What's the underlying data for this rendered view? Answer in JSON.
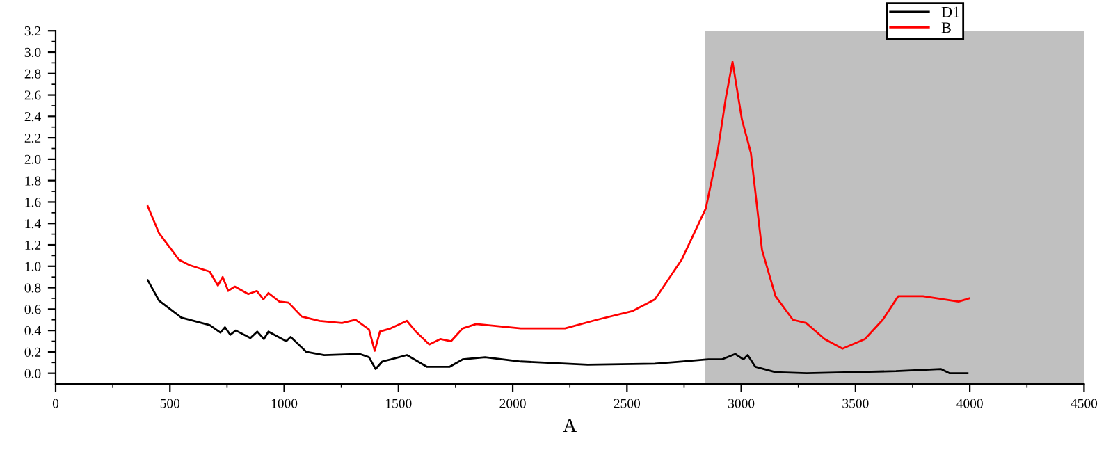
{
  "chart_data": {
    "type": "line",
    "xlabel": "A",
    "xlim": [
      0,
      4500
    ],
    "xticks": [
      0,
      500,
      1000,
      1500,
      2000,
      2500,
      3000,
      3500,
      4000,
      4500
    ],
    "ylim": [
      -0.1,
      3.2
    ],
    "yticks": [
      {
        "value": 0,
        "label": "0.0"
      },
      0.2,
      0.4,
      0.6,
      0.8,
      {
        "value": 1,
        "label": "1.0"
      },
      1.2,
      1.4,
      1.6,
      1.8,
      {
        "value": 2,
        "label": "2.0"
      },
      2.2,
      2.4,
      2.6,
      2.8,
      {
        "value": 3,
        "label": "3.0"
      },
      3.2
    ],
    "grid": false,
    "legend": "top right",
    "line_style": "solid",
    "bands": [
      {
        "axis": "x",
        "from": 2840,
        "to": 4500,
        "color": "#c0c0c0"
      }
    ],
    "series": [
      {
        "name": "D1",
        "color": "#000000",
        "x": [
          403,
          452,
          550,
          674,
          721,
          741,
          764,
          788,
          852,
          882,
          911,
          931,
          1009,
          1028,
          1097,
          1175,
          1331,
          1371,
          1400,
          1429,
          1468,
          1537,
          1625,
          1723,
          1781,
          1879,
          2035,
          2328,
          2622,
          2739,
          2856,
          2915,
          2974,
          3009,
          3028,
          3062,
          3150,
          3286,
          3482,
          3677,
          3873,
          3912,
          3990
        ],
        "values": [
          0.87,
          0.68,
          0.52,
          0.45,
          0.38,
          0.43,
          0.36,
          0.4,
          0.33,
          0.39,
          0.32,
          0.39,
          0.3,
          0.34,
          0.2,
          0.17,
          0.18,
          0.15,
          0.04,
          0.11,
          0.13,
          0.17,
          0.06,
          0.06,
          0.13,
          0.15,
          0.11,
          0.08,
          0.09,
          0.11,
          0.13,
          0.13,
          0.18,
          0.13,
          0.17,
          0.06,
          0.01,
          0.0,
          0.01,
          0.02,
          0.04,
          0.0,
          0.0
        ]
      },
      {
        "name": "B",
        "color": "#ff0000",
        "x": [
          403,
          452,
          540,
          586,
          674,
          710,
          731,
          755,
          784,
          843,
          880,
          909,
          931,
          979,
          1019,
          1077,
          1155,
          1253,
          1312,
          1371,
          1396,
          1419,
          1466,
          1537,
          1576,
          1635,
          1683,
          1730,
          1781,
          1840,
          2035,
          2229,
          2368,
          2522,
          2622,
          2739,
          2845,
          2896,
          2933,
          2962,
          3003,
          3042,
          3091,
          3150,
          3226,
          3284,
          3365,
          3443,
          3541,
          3619,
          3687,
          3795,
          3951,
          3997
        ],
        "values": [
          1.56,
          1.31,
          1.06,
          1.01,
          0.95,
          0.82,
          0.9,
          0.77,
          0.81,
          0.74,
          0.77,
          0.69,
          0.75,
          0.67,
          0.66,
          0.53,
          0.49,
          0.47,
          0.5,
          0.41,
          0.21,
          0.39,
          0.42,
          0.49,
          0.39,
          0.27,
          0.32,
          0.3,
          0.42,
          0.46,
          0.42,
          0.42,
          0.5,
          0.58,
          0.69,
          1.06,
          1.54,
          2.06,
          2.58,
          2.91,
          2.37,
          2.06,
          1.15,
          0.72,
          0.5,
          0.47,
          0.32,
          0.23,
          0.32,
          0.5,
          0.72,
          0.72,
          0.67,
          0.7
        ]
      }
    ]
  }
}
